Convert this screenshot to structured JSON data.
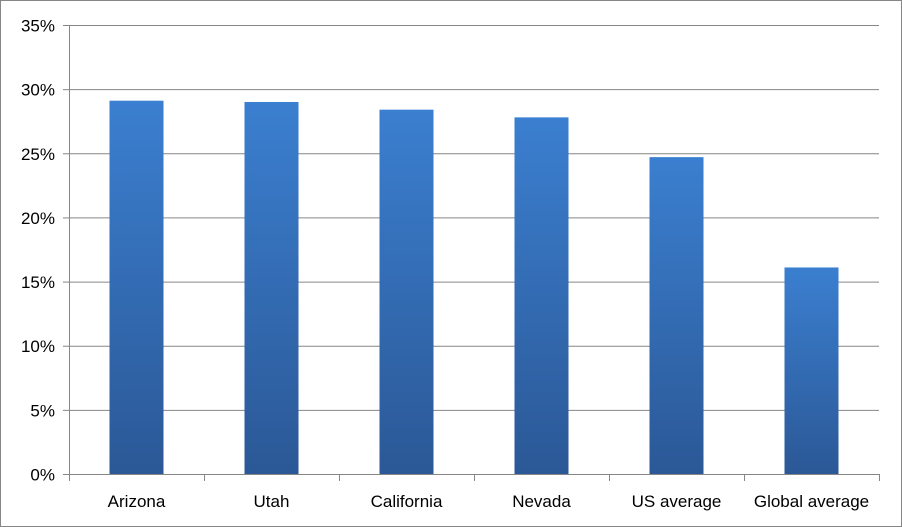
{
  "chart_data": {
    "type": "bar",
    "title": "",
    "xlabel": "",
    "ylabel": "",
    "categories": [
      "Arizona",
      "Utah",
      "California",
      "Nevada",
      "US average",
      "Global average"
    ],
    "values": [
      29.1,
      29.0,
      28.4,
      27.8,
      24.7,
      16.1
    ],
    "unit": "%",
    "ylim": [
      0,
      35
    ],
    "yticks": [
      0,
      5,
      10,
      15,
      20,
      25,
      30,
      35
    ],
    "ytick_labels": [
      "0%",
      "5%",
      "10%",
      "15%",
      "20%",
      "25%",
      "30%",
      "35%"
    ],
    "grid": true,
    "legend": "none",
    "colors": {
      "bar_top": "#3B7FD0",
      "bar_bottom": "#2B5896",
      "gridline": "#868686",
      "axis": "#868686",
      "text": "#000000"
    }
  }
}
